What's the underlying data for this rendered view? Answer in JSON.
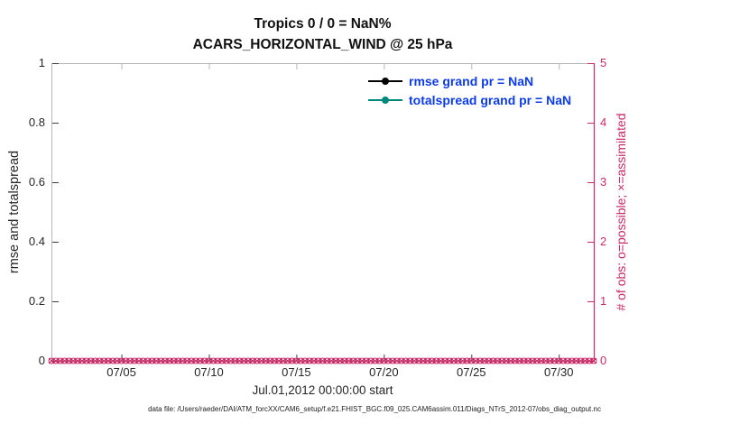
{
  "title": {
    "line1": "Tropics 0 / 0 = NaN%",
    "line2": "ACARS_HORIZONTAL_WIND @ 25 hPa"
  },
  "axes": {
    "left": {
      "label": "rmse and totalspread"
    },
    "right": {
      "label": "# of obs: o=possible; ×=assimilated"
    },
    "x": {
      "label": "Jul.01,2012 00:00:00 start"
    }
  },
  "legend": {
    "items": [
      {
        "label": "rmse grand pr = NaN",
        "line_color": "#000000"
      },
      {
        "label": "totalspread grand pr = NaN",
        "line_color": "#00897b"
      }
    ],
    "text_color": "#0b3be8"
  },
  "caption": "data file: /Users/raeder/DAI/ATM_forcXX/CAM6_setup/f.e21.FHIST_BGC.f09_025.CAM6assim.011/Diags_NTrS_2012-07/obs_diag_output.nc",
  "colors": {
    "right_axis": "#c72a66",
    "box": "#b5b5b5",
    "tick": "#404040",
    "text": "#262626"
  },
  "chart_data": {
    "type": "line",
    "title": "Tropics 0 / 0 = NaN%",
    "subtitle": "ACARS_HORIZONTAL_WIND @ 25 hPa",
    "grid": false,
    "legend_position": "upper right inside",
    "x": {
      "label": "Jul.01,2012 00:00:00 start",
      "range_days": [
        0,
        31
      ],
      "tick_days": [
        4,
        9,
        14,
        19,
        24,
        29
      ],
      "tick_labels": [
        "07/05",
        "07/10",
        "07/15",
        "07/20",
        "07/25",
        "07/30"
      ]
    },
    "y_left": {
      "label": "rmse and totalspread",
      "range": [
        0,
        1
      ],
      "ticks": [
        0,
        0.2,
        0.4,
        0.6,
        0.8,
        1
      ],
      "tick_labels": [
        "0",
        "0.2",
        "0.4",
        "0.6",
        "0.8",
        "1"
      ]
    },
    "y_right": {
      "label": "# of obs: o=possible; ×=assimilated",
      "range": [
        0,
        5
      ],
      "ticks": [
        0,
        1,
        2,
        3,
        4,
        5
      ],
      "tick_labels": [
        "0",
        "1",
        "2",
        "3",
        "4",
        "5"
      ]
    },
    "series": [
      {
        "name": "rmse",
        "axis": "left",
        "grand_mean": "NaN",
        "values": "all NaN (no line drawn)"
      },
      {
        "name": "totalspread",
        "axis": "left",
        "grand_mean": "NaN",
        "values": "all NaN (no line drawn)"
      },
      {
        "name": "possible obs (o)",
        "axis": "right",
        "marker": "o",
        "start_day": 0,
        "end_day": 31,
        "interval_days": 0.25,
        "constant_value": 0
      },
      {
        "name": "assimilated obs (x)",
        "axis": "right",
        "marker": "x",
        "start_day": 0,
        "end_day": 31,
        "interval_days": 0.25,
        "constant_value": 0
      }
    ]
  }
}
